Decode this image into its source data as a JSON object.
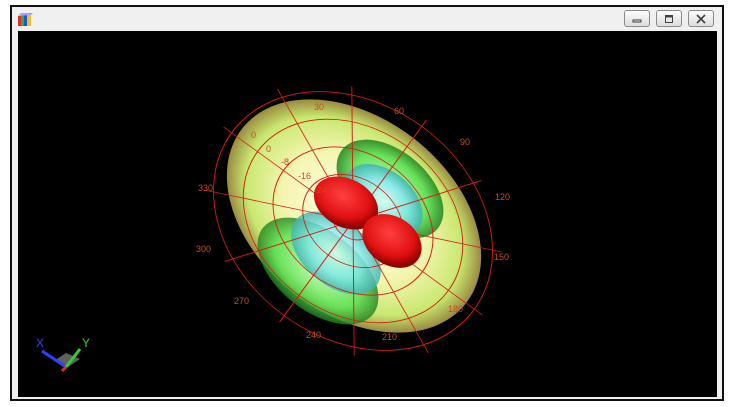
{
  "window": {
    "title": "",
    "icon": "3d-plot-app-icon",
    "controls": [
      "minimize-icon",
      "restore-icon",
      "close-icon"
    ]
  },
  "plot": {
    "background": "#000000",
    "grid_color": "#d81a10",
    "label_color": "#c84a1e",
    "angle_labels": [
      "0",
      "30",
      "60",
      "90",
      "120",
      "150",
      "180",
      "210",
      "240",
      "270",
      "300",
      "330"
    ],
    "radial_labels": [
      "0",
      "-8",
      "-16",
      "-24"
    ],
    "axes": {
      "x": "X",
      "y": "Y",
      "x_color": "#3040ff",
      "y_color": "#30d030"
    }
  }
}
